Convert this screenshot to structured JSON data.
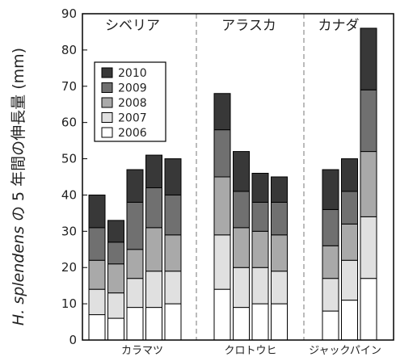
{
  "chart_data": {
    "type": "bar",
    "stacked": true,
    "ylabel_italic": "H. splendens",
    "ylabel_rest": " の 5 年間の伸長量 (mm)",
    "ylim": [
      0,
      90
    ],
    "yticks": [
      0,
      10,
      20,
      30,
      40,
      50,
      60,
      70,
      80,
      90
    ],
    "grid": false,
    "legend_position": "upper-left inside",
    "series": [
      {
        "name": "2006",
        "color": "#ffffff"
      },
      {
        "name": "2007",
        "color": "#e0e0e0"
      },
      {
        "name": "2008",
        "color": "#a9a9a9"
      },
      {
        "name": "2009",
        "color": "#707070"
      },
      {
        "name": "2010",
        "color": "#383838"
      }
    ],
    "legend_order": [
      "2010",
      "2009",
      "2008",
      "2007",
      "2006"
    ],
    "regions": [
      {
        "name": "シベリア",
        "species": "カラマツ",
        "bars": [
          [
            7,
            14,
            22,
            31,
            40
          ],
          [
            6,
            13,
            21,
            27,
            33
          ],
          [
            9,
            17,
            25,
            38,
            47
          ],
          [
            9,
            19,
            31,
            42,
            51
          ],
          [
            10,
            19,
            29,
            40,
            50
          ]
        ]
      },
      {
        "name": "アラスカ",
        "species": "クロトウヒ",
        "bars": [
          [
            14,
            29,
            45,
            58,
            68
          ],
          [
            9,
            20,
            31,
            41,
            52
          ],
          [
            10,
            20,
            30,
            38,
            46
          ],
          [
            10,
            19,
            29,
            38,
            45
          ]
        ]
      },
      {
        "name": "カナダ",
        "species": "ジャックパイン",
        "bars": [
          [
            8,
            17,
            26,
            36,
            47
          ],
          [
            11,
            22,
            32,
            41,
            50
          ],
          [
            17,
            34,
            52,
            69,
            86
          ]
        ]
      }
    ]
  }
}
